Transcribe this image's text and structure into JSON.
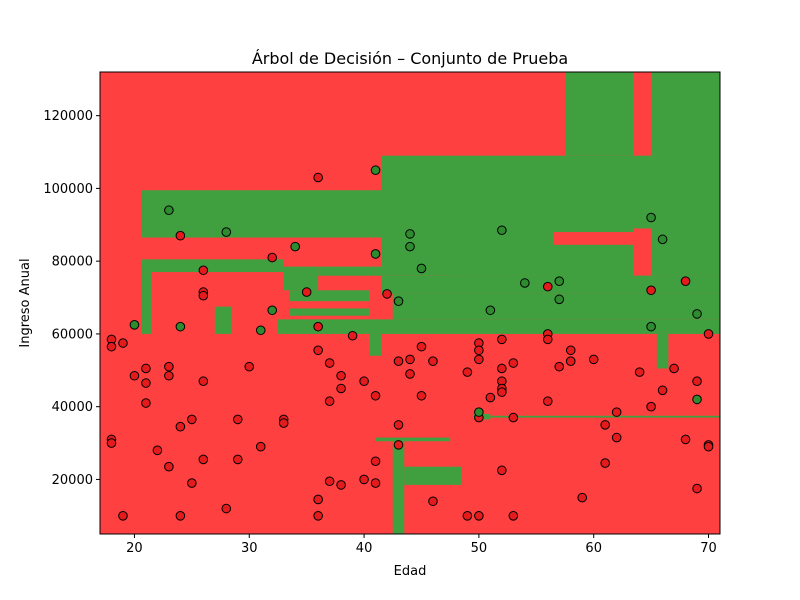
{
  "chart_data": {
    "type": "scatter",
    "title": "Árbol de Decisión – Conjunto de Prueba",
    "xlabel": "Edad",
    "ylabel": "Ingreso Anual",
    "xlim": [
      17,
      71
    ],
    "ylim": [
      5000,
      132000
    ],
    "x_ticks": [
      20,
      30,
      40,
      50,
      60,
      70
    ],
    "y_ticks": [
      20000,
      40000,
      60000,
      80000,
      100000,
      120000
    ],
    "grid": false,
    "colors": {
      "class0_region": "#ff4040",
      "class1_region": "#40a040",
      "class0_point": "#e41a1c",
      "class1_point": "#2e8b2e",
      "region_edge": "#1f7a1f"
    },
    "class1_regions": [
      {
        "x": [
          20.6,
          41.5
        ],
        "y": [
          86500,
          99500
        ]
      },
      {
        "x": [
          41.5,
          56.5
        ],
        "y": [
          76000,
          109000
        ]
      },
      {
        "x": [
          56.5,
          63.5
        ],
        "y": [
          88000,
          109000
        ]
      },
      {
        "x": [
          57.5,
          63.5
        ],
        "y": [
          109000,
          132000
        ]
      },
      {
        "x": [
          63.5,
          65
        ],
        "y": [
          89000,
          109000
        ]
      },
      {
        "x": [
          65,
          71
        ],
        "y": [
          76000,
          132000
        ]
      },
      {
        "x": [
          49.5,
          71
        ],
        "y": [
          73000,
          76000
        ]
      },
      {
        "x": [
          47.5,
          53.5
        ],
        "y": [
          76000,
          94500
        ]
      },
      {
        "x": [
          53.5,
          56
        ],
        "y": [
          76000,
          83500
        ]
      },
      {
        "x": [
          56,
          63.5
        ],
        "y": [
          75000,
          84500
        ]
      },
      {
        "x": [
          20.6,
          33
        ],
        "y": [
          77000,
          80500
        ]
      },
      {
        "x": [
          20.6,
          21.5
        ],
        "y": [
          60000,
          77000
        ]
      },
      {
        "x": [
          33,
          36
        ],
        "y": [
          72000,
          78500
        ]
      },
      {
        "x": [
          36,
          41.5
        ],
        "y": [
          76000,
          78500
        ]
      },
      {
        "x": [
          41.5,
          71
        ],
        "y": [
          71000,
          76000
        ]
      },
      {
        "x": [
          33.5,
          40.5
        ],
        "y": [
          69000,
          72000
        ]
      },
      {
        "x": [
          42.5,
          71
        ],
        "y": [
          64000,
          71000
        ]
      },
      {
        "x": [
          27,
          28.5
        ],
        "y": [
          60000,
          67500
        ]
      },
      {
        "x": [
          32.5,
          71
        ],
        "y": [
          60000,
          64000
        ]
      },
      {
        "x": [
          33.5,
          40.5
        ],
        "y": [
          65000,
          67000
        ]
      },
      {
        "x": [
          40.5,
          41.5
        ],
        "y": [
          54000,
          60000
        ]
      },
      {
        "x": [
          65.5,
          66.5
        ],
        "y": [
          50500,
          60000
        ]
      },
      {
        "x": [
          49.5,
          51
        ],
        "y": [
          36500,
          38000
        ]
      },
      {
        "x": [
          51,
          71
        ],
        "y": [
          37000,
          37500
        ]
      },
      {
        "x": [
          41,
          47.5
        ],
        "y": [
          30500,
          31500
        ]
      },
      {
        "x": [
          42.5,
          43.5
        ],
        "y": [
          5000,
          30500
        ]
      },
      {
        "x": [
          43.5,
          48.5
        ],
        "y": [
          18500,
          23500
        ]
      }
    ],
    "series": [
      {
        "name": "",
        "class": 0,
        "points": [
          [
            18,
            58500
          ],
          [
            18,
            56500
          ],
          [
            19,
            57500
          ],
          [
            18,
            31000
          ],
          [
            18,
            30000
          ],
          [
            19,
            10000
          ],
          [
            20,
            48500
          ],
          [
            21,
            50500
          ],
          [
            21,
            46500
          ],
          [
            21,
            41000
          ],
          [
            22,
            28000
          ],
          [
            23,
            51000
          ],
          [
            23,
            48500
          ],
          [
            23,
            23500
          ],
          [
            24,
            87000
          ],
          [
            24,
            34500
          ],
          [
            24,
            10000
          ],
          [
            25,
            36500
          ],
          [
            25,
            19000
          ],
          [
            26,
            77500
          ],
          [
            26,
            71500
          ],
          [
            26,
            70500
          ],
          [
            26,
            47000
          ],
          [
            26,
            25500
          ],
          [
            28,
            12000
          ],
          [
            29,
            36500
          ],
          [
            29,
            25500
          ],
          [
            30,
            51000
          ],
          [
            31,
            29000
          ],
          [
            32,
            81000
          ],
          [
            33,
            36500
          ],
          [
            33,
            35500
          ],
          [
            35,
            71500
          ],
          [
            36,
            103000
          ],
          [
            36,
            62000
          ],
          [
            36,
            55500
          ],
          [
            36,
            14500
          ],
          [
            36,
            10000
          ],
          [
            37,
            52000
          ],
          [
            37,
            41500
          ],
          [
            37,
            19500
          ],
          [
            38,
            48500
          ],
          [
            38,
            45000
          ],
          [
            38,
            18500
          ],
          [
            39,
            59500
          ],
          [
            40,
            47000
          ],
          [
            40,
            20000
          ],
          [
            41,
            43000
          ],
          [
            41,
            25000
          ],
          [
            41,
            19000
          ],
          [
            42,
            71000
          ],
          [
            43,
            52500
          ],
          [
            43,
            35000
          ],
          [
            43,
            29500
          ],
          [
            44,
            49000
          ],
          [
            44,
            53000
          ],
          [
            45,
            56500
          ],
          [
            45,
            43000
          ],
          [
            46,
            52500
          ],
          [
            46,
            14000
          ],
          [
            49,
            49500
          ],
          [
            49,
            10000
          ],
          [
            50,
            57500
          ],
          [
            50,
            55500
          ],
          [
            50,
            53000
          ],
          [
            50,
            37000
          ],
          [
            50,
            10000
          ],
          [
            51,
            42500
          ],
          [
            52,
            58500
          ],
          [
            52,
            50500
          ],
          [
            52,
            47000
          ],
          [
            52,
            45000
          ],
          [
            52,
            44000
          ],
          [
            52,
            22500
          ],
          [
            53,
            52000
          ],
          [
            53,
            37000
          ],
          [
            53,
            10000
          ],
          [
            56,
            73000
          ],
          [
            56,
            60000
          ],
          [
            56,
            58500
          ],
          [
            56,
            41500
          ],
          [
            57,
            51000
          ],
          [
            58,
            55500
          ],
          [
            58,
            52500
          ],
          [
            59,
            15000
          ],
          [
            60,
            53000
          ],
          [
            61,
            35000
          ],
          [
            61,
            24500
          ],
          [
            62,
            38500
          ],
          [
            62,
            31500
          ],
          [
            64,
            49500
          ],
          [
            65,
            72000
          ],
          [
            65,
            40000
          ],
          [
            66,
            44500
          ],
          [
            67,
            50500
          ],
          [
            68,
            74500
          ],
          [
            68,
            31000
          ],
          [
            69,
            47000
          ],
          [
            69,
            17500
          ],
          [
            70,
            60000
          ],
          [
            70,
            29500
          ],
          [
            70,
            29000
          ]
        ]
      },
      {
        "name": "",
        "class": 1,
        "points": [
          [
            23,
            94000
          ],
          [
            28,
            88000
          ],
          [
            34,
            84000
          ],
          [
            41,
            105000
          ],
          [
            41,
            82000
          ],
          [
            44,
            87500
          ],
          [
            44,
            84000
          ],
          [
            45,
            78000
          ],
          [
            52,
            88500
          ],
          [
            20,
            62500
          ],
          [
            24,
            62000
          ],
          [
            31,
            61000
          ],
          [
            32,
            66500
          ],
          [
            43,
            69000
          ],
          [
            51,
            66500
          ],
          [
            54,
            74000
          ],
          [
            57,
            74500
          ],
          [
            57,
            69500
          ],
          [
            65,
            92000
          ],
          [
            66,
            86000
          ],
          [
            65,
            62000
          ],
          [
            69,
            65500
          ],
          [
            69,
            42000
          ],
          [
            50,
            38500
          ]
        ]
      }
    ]
  }
}
